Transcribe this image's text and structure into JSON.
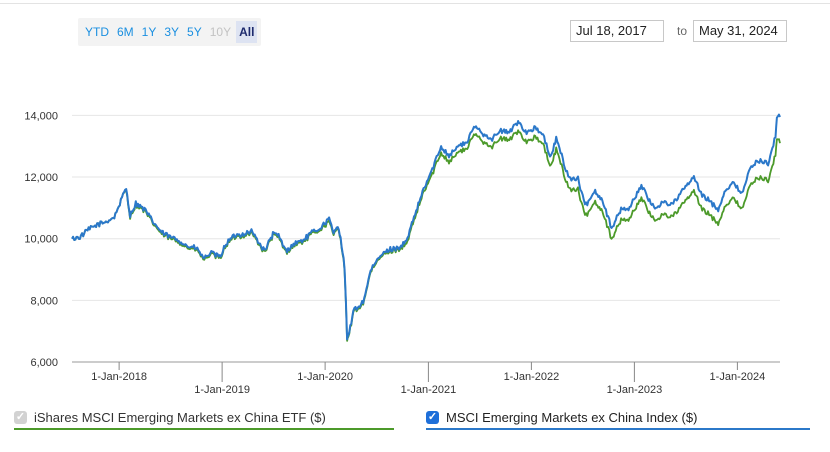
{
  "range_buttons": [
    {
      "label": "YTD",
      "state": "enabled"
    },
    {
      "label": "6M",
      "state": "enabled"
    },
    {
      "label": "1Y",
      "state": "enabled"
    },
    {
      "label": "3Y",
      "state": "enabled"
    },
    {
      "label": "5Y",
      "state": "enabled"
    },
    {
      "label": "10Y",
      "state": "disabled"
    },
    {
      "label": "All",
      "state": "active"
    }
  ],
  "date_range": {
    "from": "Jul 18, 2017",
    "to_label": "to",
    "to": "May 31, 2024"
  },
  "legend": [
    {
      "label": "iShares MSCI Emerging Markets ex China ETF ($)",
      "checked": true,
      "checkbox_style": "disabled-grey",
      "color": "#4c9a2a"
    },
    {
      "label": "MSCI Emerging Markets ex China Index ($)",
      "checked": true,
      "checkbox_style": "blue",
      "color": "#2b78c9"
    }
  ],
  "chart_data": {
    "type": "line",
    "title": "",
    "xlabel": "",
    "ylabel": "",
    "x_range": [
      "2017-07-18",
      "2024-05-31"
    ],
    "ylim": [
      6000,
      14500
    ],
    "y_ticks": [
      6000,
      8000,
      10000,
      12000,
      14000
    ],
    "y_tick_labels": [
      "6,000",
      "8,000",
      "10,000",
      "12,000",
      "14,000"
    ],
    "x_ticks": [
      "2018-01-01",
      "2019-01-01",
      "2020-01-01",
      "2021-01-01",
      "2022-01-01",
      "2023-01-01",
      "2024-01-01"
    ],
    "x_tick_labels": [
      "1-Jan-2018",
      "1-Jan-2019",
      "1-Jan-2020",
      "1-Jan-2021",
      "1-Jan-2022",
      "1-Jan-2023",
      "1-Jan-2024"
    ],
    "grid": {
      "horizontal": true,
      "vertical": false
    },
    "legend_position": "bottom",
    "series": [
      {
        "name": "iShares MSCI Emerging Markets ex China ETF ($)",
        "color": "#4c9a2a",
        "points": [
          [
            "2017-07-18",
            10000
          ],
          [
            "2017-08-15",
            10050
          ],
          [
            "2017-09-15",
            10300
          ],
          [
            "2017-10-15",
            10450
          ],
          [
            "2017-11-15",
            10550
          ],
          [
            "2017-12-15",
            10700
          ],
          [
            "2018-01-15",
            11400
          ],
          [
            "2018-01-26",
            11600
          ],
          [
            "2018-02-09",
            10700
          ],
          [
            "2018-03-01",
            11100
          ],
          [
            "2018-04-01",
            10900
          ],
          [
            "2018-05-01",
            10500
          ],
          [
            "2018-06-01",
            10150
          ],
          [
            "2018-07-01",
            10000
          ],
          [
            "2018-08-01",
            9900
          ],
          [
            "2018-09-01",
            9700
          ],
          [
            "2018-10-01",
            9650
          ],
          [
            "2018-10-30",
            9300
          ],
          [
            "2018-11-20",
            9500
          ],
          [
            "2018-12-24",
            9350
          ],
          [
            "2019-01-15",
            9800
          ],
          [
            "2019-02-15",
            10050
          ],
          [
            "2019-03-15",
            10100
          ],
          [
            "2019-04-15",
            10200
          ],
          [
            "2019-05-31",
            9550
          ],
          [
            "2019-06-30",
            10100
          ],
          [
            "2019-07-20",
            10050
          ],
          [
            "2019-08-15",
            9550
          ],
          [
            "2019-09-15",
            9800
          ],
          [
            "2019-10-15",
            9900
          ],
          [
            "2019-11-15",
            10150
          ],
          [
            "2019-12-15",
            10300
          ],
          [
            "2020-01-15",
            10550
          ],
          [
            "2020-01-31",
            10100
          ],
          [
            "2020-02-15",
            10400
          ],
          [
            "2020-02-25",
            10000
          ],
          [
            "2020-03-10",
            9000
          ],
          [
            "2020-03-19",
            6700
          ],
          [
            "2020-03-23",
            6750
          ],
          [
            "2020-04-10",
            7600
          ],
          [
            "2020-05-15",
            7900
          ],
          [
            "2020-06-10",
            8900
          ],
          [
            "2020-07-15",
            9400
          ],
          [
            "2020-08-15",
            9600
          ],
          [
            "2020-09-15",
            9650
          ],
          [
            "2020-10-15",
            9800
          ],
          [
            "2020-11-15",
            10700
          ],
          [
            "2020-12-15",
            11500
          ],
          [
            "2021-01-15",
            12100
          ],
          [
            "2021-02-15",
            12800
          ],
          [
            "2021-03-15",
            12500
          ],
          [
            "2021-04-15",
            12800
          ],
          [
            "2021-05-15",
            12900
          ],
          [
            "2021-06-15",
            13400
          ],
          [
            "2021-07-15",
            13150
          ],
          [
            "2021-08-15",
            13000
          ],
          [
            "2021-09-15",
            13250
          ],
          [
            "2021-10-15",
            13200
          ],
          [
            "2021-11-15",
            13500
          ],
          [
            "2021-12-15",
            13150
          ],
          [
            "2022-01-15",
            13300
          ],
          [
            "2022-02-15",
            13000
          ],
          [
            "2022-03-08",
            12300
          ],
          [
            "2022-03-30",
            12900
          ],
          [
            "2022-04-30",
            12000
          ],
          [
            "2022-05-15",
            11600
          ],
          [
            "2022-06-15",
            11600
          ],
          [
            "2022-07-10",
            10700
          ],
          [
            "2022-08-15",
            11200
          ],
          [
            "2022-09-10",
            10900
          ],
          [
            "2022-10-12",
            10000
          ],
          [
            "2022-11-15",
            10600
          ],
          [
            "2022-12-15",
            10650
          ],
          [
            "2023-01-26",
            11350
          ],
          [
            "2023-02-20",
            10850
          ],
          [
            "2023-03-15",
            10600
          ],
          [
            "2023-04-15",
            10800
          ],
          [
            "2023-05-15",
            10700
          ],
          [
            "2023-06-20",
            11100
          ],
          [
            "2023-07-31",
            11550
          ],
          [
            "2023-08-25",
            11000
          ],
          [
            "2023-09-15",
            10850
          ],
          [
            "2023-10-25",
            10500
          ],
          [
            "2023-11-20",
            11100
          ],
          [
            "2023-12-15",
            11300
          ],
          [
            "2024-01-17",
            11000
          ],
          [
            "2024-02-15",
            11700
          ],
          [
            "2024-03-15",
            12000
          ],
          [
            "2024-04-19",
            11900
          ],
          [
            "2024-05-15",
            12700
          ],
          [
            "2024-05-20",
            13300
          ],
          [
            "2024-05-31",
            13100
          ]
        ]
      },
      {
        "name": "MSCI Emerging Markets ex China Index ($)",
        "color": "#2b78c9",
        "points": [
          [
            "2017-07-18",
            10000
          ],
          [
            "2017-08-15",
            10050
          ],
          [
            "2017-09-15",
            10300
          ],
          [
            "2017-10-15",
            10450
          ],
          [
            "2017-11-15",
            10550
          ],
          [
            "2017-12-15",
            10700
          ],
          [
            "2018-01-15",
            11400
          ],
          [
            "2018-01-26",
            11650
          ],
          [
            "2018-02-09",
            10750
          ],
          [
            "2018-03-01",
            11150
          ],
          [
            "2018-04-01",
            10950
          ],
          [
            "2018-05-01",
            10550
          ],
          [
            "2018-06-01",
            10200
          ],
          [
            "2018-07-01",
            10050
          ],
          [
            "2018-08-01",
            9950
          ],
          [
            "2018-09-01",
            9750
          ],
          [
            "2018-10-01",
            9700
          ],
          [
            "2018-10-30",
            9350
          ],
          [
            "2018-11-20",
            9550
          ],
          [
            "2018-12-24",
            9400
          ],
          [
            "2019-01-15",
            9850
          ],
          [
            "2019-02-15",
            10100
          ],
          [
            "2019-03-15",
            10150
          ],
          [
            "2019-04-15",
            10250
          ],
          [
            "2019-05-31",
            9600
          ],
          [
            "2019-06-30",
            10150
          ],
          [
            "2019-07-20",
            10100
          ],
          [
            "2019-08-15",
            9600
          ],
          [
            "2019-09-15",
            9850
          ],
          [
            "2019-10-15",
            9950
          ],
          [
            "2019-11-15",
            10200
          ],
          [
            "2019-12-15",
            10350
          ],
          [
            "2020-01-15",
            10650
          ],
          [
            "2020-01-31",
            10150
          ],
          [
            "2020-02-15",
            10450
          ],
          [
            "2020-02-25",
            10050
          ],
          [
            "2020-03-10",
            9050
          ],
          [
            "2020-03-19",
            6750
          ],
          [
            "2020-03-23",
            6800
          ],
          [
            "2020-04-10",
            7650
          ],
          [
            "2020-05-15",
            7950
          ],
          [
            "2020-06-10",
            8950
          ],
          [
            "2020-07-15",
            9450
          ],
          [
            "2020-08-15",
            9650
          ],
          [
            "2020-09-15",
            9700
          ],
          [
            "2020-10-15",
            9900
          ],
          [
            "2020-11-15",
            10800
          ],
          [
            "2020-12-15",
            11600
          ],
          [
            "2021-01-15",
            12250
          ],
          [
            "2021-02-15",
            13000
          ],
          [
            "2021-03-15",
            12700
          ],
          [
            "2021-04-15",
            13000
          ],
          [
            "2021-05-15",
            13100
          ],
          [
            "2021-06-15",
            13650
          ],
          [
            "2021-07-15",
            13400
          ],
          [
            "2021-08-15",
            13250
          ],
          [
            "2021-09-15",
            13500
          ],
          [
            "2021-10-15",
            13450
          ],
          [
            "2021-11-15",
            13800
          ],
          [
            "2021-12-15",
            13450
          ],
          [
            "2022-01-15",
            13600
          ],
          [
            "2022-02-15",
            13300
          ],
          [
            "2022-03-08",
            12600
          ],
          [
            "2022-03-30",
            13250
          ],
          [
            "2022-04-30",
            12350
          ],
          [
            "2022-05-15",
            11950
          ],
          [
            "2022-06-15",
            11950
          ],
          [
            "2022-07-10",
            11050
          ],
          [
            "2022-08-15",
            11550
          ],
          [
            "2022-09-10",
            11250
          ],
          [
            "2022-10-12",
            10350
          ],
          [
            "2022-11-15",
            10950
          ],
          [
            "2022-12-15",
            11000
          ],
          [
            "2023-01-26",
            11750
          ],
          [
            "2023-02-20",
            11250
          ],
          [
            "2023-03-15",
            11000
          ],
          [
            "2023-04-15",
            11200
          ],
          [
            "2023-05-15",
            11100
          ],
          [
            "2023-06-20",
            11550
          ],
          [
            "2023-07-31",
            12000
          ],
          [
            "2023-08-25",
            11450
          ],
          [
            "2023-09-15",
            11300
          ],
          [
            "2023-10-25",
            10950
          ],
          [
            "2023-11-20",
            11600
          ],
          [
            "2023-12-15",
            11800
          ],
          [
            "2024-01-17",
            11500
          ],
          [
            "2024-02-15",
            12250
          ],
          [
            "2024-03-15",
            12550
          ],
          [
            "2024-04-19",
            12450
          ],
          [
            "2024-05-15",
            13300
          ],
          [
            "2024-05-20",
            14000
          ],
          [
            "2024-05-31",
            13950
          ]
        ]
      }
    ]
  }
}
